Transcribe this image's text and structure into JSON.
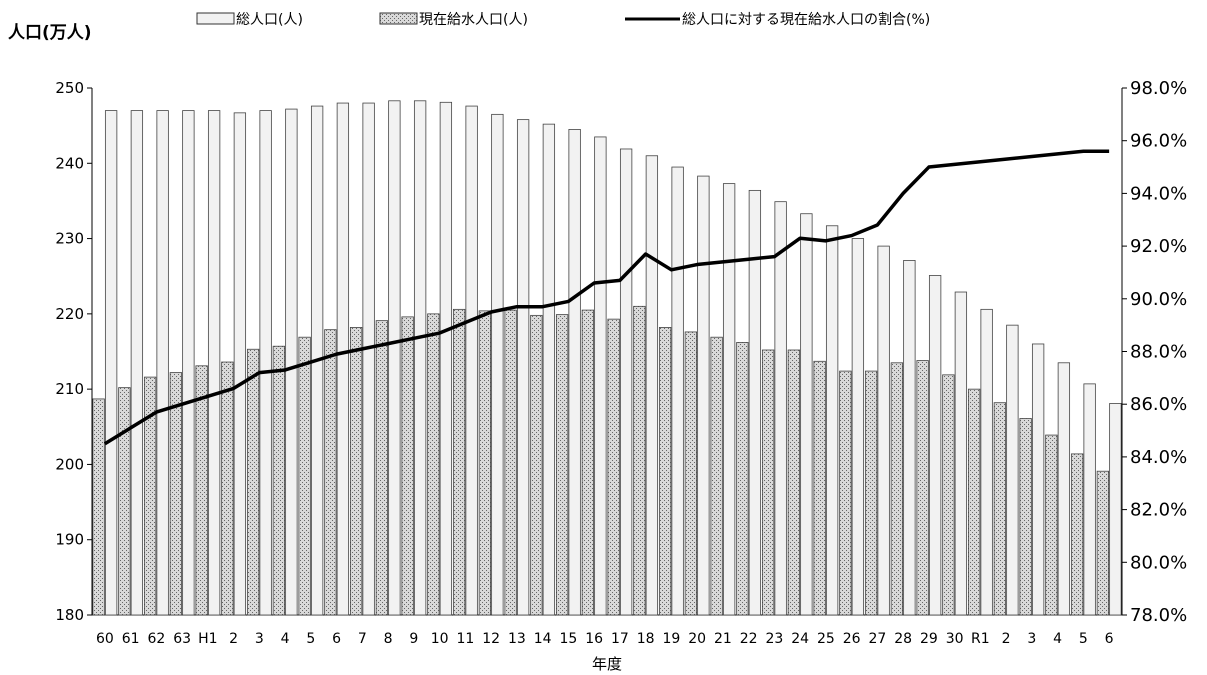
{
  "chart_data": {
    "type": "bar",
    "ylabel": "人口(万人)",
    "xlabel": "年度",
    "categories": [
      "60",
      "61",
      "62",
      "63",
      "H1",
      "2",
      "3",
      "4",
      "5",
      "6",
      "7",
      "8",
      "9",
      "10",
      "11",
      "12",
      "13",
      "14",
      "15",
      "16",
      "17",
      "18",
      "19",
      "20",
      "21",
      "22",
      "23",
      "24",
      "25",
      "26",
      "27",
      "28",
      "29",
      "30",
      "R1",
      "2",
      "3",
      "4",
      "5",
      "6"
    ],
    "ylim": [
      180,
      250
    ],
    "yticks": [
      180,
      190,
      200,
      210,
      220,
      230,
      240,
      250
    ],
    "y2lim": [
      78.0,
      98.0
    ],
    "y2ticks": [
      "78.0%",
      "80.0%",
      "82.0%",
      "84.0%",
      "86.0%",
      "88.0%",
      "90.0%",
      "92.0%",
      "94.0%",
      "96.0%",
      "98.0%"
    ],
    "legend_position": "top",
    "grid": false,
    "series": [
      {
        "name": "総人口(人)",
        "type": "bar",
        "color": "#f2f2f2",
        "values": [
          247.0,
          247.0,
          247.0,
          247.0,
          247.0,
          246.7,
          247.0,
          247.2,
          247.6,
          248.0,
          248.0,
          248.3,
          248.3,
          248.1,
          247.6,
          246.5,
          245.8,
          245.2,
          244.5,
          243.5,
          241.9,
          241.0,
          239.5,
          238.3,
          237.3,
          236.4,
          234.9,
          233.3,
          231.7,
          230.0,
          229.0,
          227.1,
          225.1,
          222.9,
          220.6,
          218.5,
          216.0,
          213.5,
          210.7,
          208.1
        ]
      },
      {
        "name": "現在給水人口(人)",
        "type": "bar",
        "color": "#c8c8c8",
        "values": [
          208.7,
          210.2,
          211.6,
          212.2,
          213.1,
          213.6,
          215.3,
          215.7,
          216.9,
          217.9,
          218.2,
          219.1,
          219.6,
          220.0,
          220.6,
          220.4,
          220.5,
          219.8,
          219.9,
          220.5,
          219.3,
          221.0,
          218.2,
          217.6,
          216.9,
          216.2,
          215.2,
          215.2,
          213.7,
          212.4,
          212.4,
          213.5,
          213.8,
          211.9,
          210.0,
          208.2,
          206.1,
          203.9,
          201.4,
          199.1
        ]
      },
      {
        "name": "総人口に対する現在給水人口の割合(%)",
        "type": "line",
        "axis": "right",
        "color": "#000000",
        "values": [
          84.5,
          85.1,
          85.7,
          86.0,
          86.3,
          86.6,
          87.2,
          87.3,
          87.6,
          87.9,
          88.1,
          88.3,
          88.5,
          88.7,
          89.1,
          89.5,
          89.7,
          89.7,
          89.9,
          90.6,
          90.7,
          91.7,
          91.1,
          91.3,
          91.4,
          91.5,
          91.6,
          92.3,
          92.2,
          92.4,
          92.8,
          94.0,
          95.0,
          95.1,
          95.2,
          95.3,
          95.4,
          95.5,
          95.6,
          95.6
        ]
      }
    ]
  }
}
